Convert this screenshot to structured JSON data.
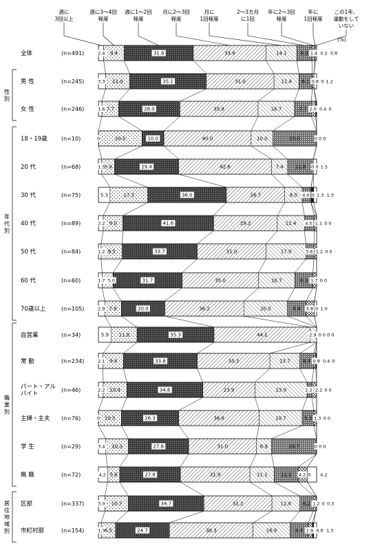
{
  "chart_data": {
    "type": "bar",
    "stacked": true,
    "orientation": "horizontal",
    "percent_label": "(%)",
    "frequency_labels": [
      "週に\n3回以上",
      "週に3～4回\n程度",
      "週に1～2回\n程度",
      "月に2～3回\n程度",
      "月に\n1回程度",
      "2～3カ月\nに1回",
      "年に2～3回\n程度",
      "年に\n1回程度",
      "この1年、\n運動をして\nいない"
    ],
    "series_fill": [
      "#ffffff",
      "#f3f3f3",
      "#555555",
      "#ebebeb",
      "#d8d8d8",
      "#8a8a8a",
      "#c2c2c2",
      "#303030",
      "#ffffff"
    ],
    "groups": [
      {
        "label": "",
        "rows": [
          0
        ]
      },
      {
        "label": "性別",
        "rows": [
          1,
          2
        ]
      },
      {
        "label": "年代別",
        "rows": [
          3,
          4,
          5,
          6,
          7,
          8,
          9
        ]
      },
      {
        "label": "職業別",
        "rows": [
          10,
          11,
          12,
          13,
          14,
          15
        ]
      },
      {
        "label": "居住地域別",
        "rows": [
          16,
          17
        ]
      }
    ],
    "rows": [
      {
        "label": "全体",
        "n": "(n=491)",
        "values": [
          2.4,
          9.4,
          31.8,
          33.4,
          14.1,
          6.9,
          1.4,
          0.2,
          0.6
        ]
      },
      {
        "label": "男 性",
        "n": "(n=245)",
        "values": [
          3.3,
          11.0,
          35.1,
          31.0,
          11.4,
          6.1,
          0.8,
          0.0,
          1.2
        ]
      },
      {
        "label": "女 性",
        "n": "(n=246)",
        "values": [
          1.6,
          7.7,
          28.0,
          35.8,
          16.7,
          7.7,
          2.0,
          0.4,
          0.0
        ]
      },
      {
        "label": "18・19歳",
        "n": "(n=10)",
        "values": [
          0,
          20.0,
          10.0,
          40.0,
          10.0,
          20.0,
          0,
          0,
          0
        ]
      },
      {
        "label": "20 代",
        "n": "(n=68)",
        "values": [
          1.5,
          5.9,
          29.4,
          42.6,
          7.4,
          11.8,
          0,
          0,
          1.5
        ]
      },
      {
        "label": "30 代",
        "n": "(n=75)",
        "values": [
          5.3,
          17.3,
          36.0,
          26.7,
          8.0,
          4.0,
          0,
          1.3,
          1.3
        ]
      },
      {
        "label": "40 代",
        "n": "(n=89)",
        "values": [
          2.2,
          9.0,
          41.6,
          29.2,
          12.4,
          4.5,
          1.1,
          0,
          0
        ]
      },
      {
        "label": "50 代",
        "n": "(n=84)",
        "values": [
          1.2,
          9.5,
          33.7,
          31.0,
          17.9,
          3.6,
          1.2,
          0,
          0
        ]
      },
      {
        "label": "60 代",
        "n": "(n=60)",
        "values": [
          1.7,
          5.0,
          31.7,
          35.0,
          16.7,
          8.3,
          1.7,
          0,
          0
        ]
      },
      {
        "label": "70歳以上",
        "n": "(n=105)",
        "values": [
          2.9,
          7.6,
          20.0,
          36.2,
          20.0,
          8.6,
          3.8,
          0,
          1.0
        ]
      },
      {
        "label": "自営業",
        "n": "(n=34)",
        "values": [
          5.9,
          11.8,
          35.3,
          44.1,
          2.9,
          0,
          0,
          0,
          0
        ]
      },
      {
        "label": "常 勤",
        "n": "(n=234)",
        "values": [
          2.1,
          9.4,
          33.8,
          33.3,
          13.7,
          6.4,
          0.9,
          0.4,
          0
        ]
      },
      {
        "label": "パート・アル\nバイト",
        "n": "(n=46)",
        "values": [
          2.2,
          10.9,
          34.8,
          23.9,
          23.9,
          2.2,
          2.2,
          0,
          0
        ]
      },
      {
        "label": "主婦・主夫",
        "n": "(n=76)",
        "values": [
          0,
          10.5,
          26.3,
          36.8,
          19.7,
          5.3,
          1.3,
          0,
          0
        ]
      },
      {
        "label": "学 生",
        "n": "(n=29)",
        "values": [
          3.4,
          10.3,
          27.6,
          31.0,
          6.9,
          20.7,
          0,
          0,
          0
        ]
      },
      {
        "label": "無 職",
        "n": "(n=72)",
        "values": [
          4.2,
          5.6,
          27.8,
          31.9,
          11.1,
          11.1,
          4.2,
          0,
          4.2
        ]
      },
      {
        "label": "区部",
        "n": "(n=337)",
        "values": [
          3.0,
          10.7,
          34.7,
          31.2,
          12.8,
          6.2,
          1.2,
          0,
          0.3
        ]
      },
      {
        "label": "市町村部",
        "n": "(n=154)",
        "values": [
          1.3,
          6.5,
          24.7,
          38.3,
          16.9,
          8.4,
          1.9,
          0.6,
          1.3
        ]
      }
    ],
    "xlim": [
      0,
      100
    ]
  }
}
